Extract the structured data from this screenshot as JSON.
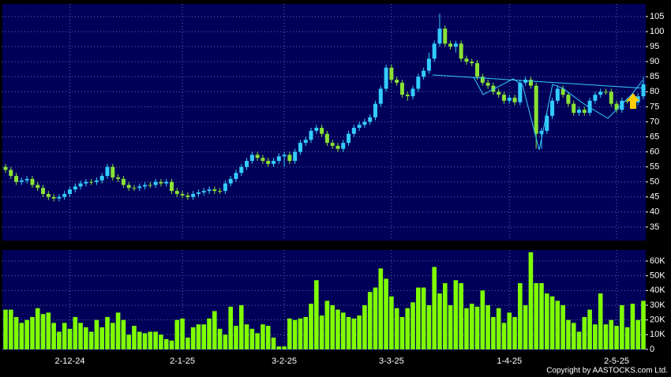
{
  "chart_data": [
    {
      "type": "candlestick",
      "categories": [
        null,
        null,
        null,
        null,
        null,
        null,
        null,
        null,
        null,
        null,
        null,
        null,
        "2-12-24",
        null,
        null,
        null,
        null,
        null,
        null,
        null,
        null,
        null,
        null,
        null,
        null,
        null,
        null,
        null,
        null,
        null,
        null,
        null,
        null,
        "2-1-25",
        null,
        null,
        null,
        null,
        null,
        null,
        null,
        null,
        null,
        null,
        null,
        null,
        null,
        null,
        null,
        null,
        null,
        null,
        "3-2-25",
        null,
        null,
        null,
        null,
        null,
        null,
        null,
        null,
        null,
        null,
        null,
        null,
        null,
        null,
        null,
        null,
        null,
        null,
        null,
        "3-3-25",
        null,
        null,
        null,
        null,
        null,
        null,
        null,
        null,
        null,
        null,
        null,
        null,
        null,
        null,
        null,
        null,
        null,
        null,
        null,
        null,
        null,
        "1-4-25",
        null,
        null,
        null,
        null,
        null,
        null,
        null,
        null,
        null,
        null,
        null,
        null,
        null,
        null,
        null,
        null,
        null,
        null,
        null,
        "2-5-25",
        null,
        null,
        null,
        null,
        null
      ],
      "open": [
        55,
        54,
        52,
        50,
        50.5,
        51,
        49,
        48,
        46,
        45,
        44.5,
        45,
        46,
        47.5,
        48.5,
        49.5,
        50,
        50,
        50.5,
        52,
        55,
        51.5,
        51,
        49,
        48,
        48,
        48.5,
        49,
        49,
        50,
        49.5,
        50,
        47,
        46,
        45.5,
        45,
        46,
        46.5,
        47,
        47.5,
        47,
        47,
        49.5,
        51,
        53,
        55,
        57,
        59,
        58,
        57,
        56,
        57,
        58.5,
        59,
        57,
        60,
        63,
        64,
        67,
        68,
        66,
        63,
        62,
        61,
        63,
        66,
        68,
        69,
        70,
        71.5,
        76,
        81,
        88,
        84,
        83,
        79,
        78.5,
        81,
        85,
        87,
        91,
        96,
        101,
        96,
        95,
        96,
        91,
        90,
        89.5,
        85,
        83,
        82,
        80,
        79,
        77,
        78,
        76.5,
        83,
        84,
        82,
        66,
        67,
        72,
        77,
        81,
        79,
        76,
        73,
        74,
        73,
        77,
        79,
        80,
        80,
        76,
        74,
        77,
        77,
        76.5,
        78.5
      ],
      "high": [
        56,
        55,
        53,
        51.5,
        52,
        52,
        50,
        49,
        47,
        46,
        46,
        47,
        48.5,
        49.5,
        50.5,
        51,
        51,
        51.5,
        53,
        56,
        56,
        52.5,
        52,
        50,
        49,
        49.5,
        50,
        50,
        51,
        51,
        51,
        51,
        48,
        47,
        46.5,
        47,
        47.5,
        48,
        48.5,
        48.5,
        48,
        50.5,
        52,
        54,
        56,
        58,
        60,
        60,
        59,
        58,
        58,
        59.5,
        60,
        60,
        61,
        64,
        65,
        68,
        69,
        69,
        67,
        64,
        63,
        64,
        67,
        69,
        70,
        71,
        72.5,
        77,
        82,
        89,
        89,
        85,
        84,
        80,
        82,
        86,
        88,
        93,
        97,
        106,
        102,
        97,
        97,
        97,
        92,
        91,
        90.5,
        86,
        84,
        83,
        81,
        80,
        79,
        79,
        84,
        85,
        85,
        83,
        68,
        73,
        78,
        82,
        82,
        80,
        77,
        75,
        75,
        78,
        80,
        81,
        81,
        81,
        77,
        78,
        78,
        78,
        79.5,
        85
      ],
      "low": [
        53,
        51,
        49,
        49,
        49.5,
        48,
        47,
        45,
        44,
        43.5,
        43.5,
        44,
        45,
        46.5,
        47.5,
        48.5,
        49,
        49,
        49.5,
        51,
        50.5,
        50,
        48,
        47,
        47,
        47,
        47.5,
        48,
        48,
        48.5,
        48.5,
        46,
        45,
        44.5,
        44,
        44,
        45,
        45.5,
        46,
        46,
        46,
        46,
        48.5,
        50,
        52,
        54,
        56,
        57,
        56,
        55,
        55,
        56,
        55,
        56,
        56,
        59,
        62,
        63,
        66,
        65,
        62,
        61,
        60,
        60,
        62,
        65,
        67,
        68,
        69,
        70.5,
        75,
        80,
        83,
        82,
        78,
        77,
        77.5,
        80,
        84,
        86,
        90,
        95,
        95,
        94,
        93,
        90,
        89,
        88.5,
        84,
        82,
        81,
        79,
        78,
        76,
        76,
        75.5,
        75.5,
        82,
        81,
        61,
        61,
        66,
        71,
        76,
        78,
        75,
        72,
        72,
        72,
        72,
        76,
        78,
        79,
        75,
        73,
        73,
        76,
        75.5,
        75.5,
        77.5
      ],
      "close": [
        54,
        52,
        50,
        50.5,
        51,
        49,
        48,
        46,
        45,
        44.5,
        45,
        46,
        47.5,
        48.5,
        49.5,
        50,
        50,
        50.5,
        52,
        55,
        51.5,
        51,
        49,
        48,
        48,
        48.5,
        49,
        49,
        50,
        49.5,
        50,
        47,
        46,
        45.5,
        45,
        46,
        46.5,
        47,
        47.5,
        47,
        47,
        49.5,
        51,
        53,
        55,
        57,
        59,
        58,
        57,
        56,
        57,
        58.5,
        59,
        57,
        60,
        63,
        64,
        67,
        68,
        66,
        63,
        62,
        61,
        63,
        66,
        68,
        69,
        70,
        71.5,
        76,
        81,
        88,
        84,
        83,
        79,
        78.5,
        81,
        85,
        87,
        91,
        96,
        101,
        96,
        95,
        96,
        91,
        90,
        89.5,
        85,
        83,
        82,
        80,
        79,
        77,
        78,
        76.5,
        83,
        84,
        82,
        66,
        67,
        72,
        77,
        81,
        79,
        76,
        73,
        74,
        73,
        77,
        79,
        80,
        80,
        76,
        74,
        77,
        77,
        76.5,
        78.5,
        82.5
      ],
      "up_color": "#33ccff",
      "down_color": "#8ae234",
      "ylim": [
        30.5,
        109.2
      ],
      "yticks": [
        35,
        40,
        45,
        50,
        55,
        60,
        65,
        70,
        75,
        80,
        85,
        90,
        95,
        100,
        105
      ],
      "grid": true
    },
    {
      "type": "bar",
      "color": "#7fff00",
      "values": [
        27000,
        27000,
        22000,
        18000,
        20000,
        22000,
        28000,
        24000,
        25000,
        18000,
        12000,
        18000,
        14000,
        22000,
        18000,
        15000,
        12000,
        20000,
        15000,
        22000,
        18000,
        25000,
        20000,
        10000,
        16000,
        12000,
        11000,
        12000,
        12000,
        10000,
        7000,
        6000,
        20000,
        21000,
        8000,
        15000,
        17000,
        17000,
        21000,
        26000,
        14000,
        10000,
        29000,
        16000,
        30000,
        17000,
        14000,
        11000,
        17000,
        16000,
        8000,
        2000,
        2000,
        21000,
        20000,
        21000,
        22000,
        31000,
        47000,
        23000,
        33000,
        30000,
        27000,
        25000,
        22000,
        21000,
        23000,
        30000,
        39000,
        42000,
        55000,
        48000,
        36000,
        28000,
        22000,
        28000,
        32000,
        42000,
        42000,
        30000,
        56000,
        38000,
        45000,
        30000,
        47000,
        45000,
        28000,
        31000,
        29000,
        40000,
        30000,
        22000,
        28000,
        18000,
        25000,
        22000,
        45000,
        30000,
        66000,
        45000,
        45000,
        38000,
        36000,
        33000,
        30000,
        20000,
        18000,
        12000,
        22000,
        27000,
        17000,
        38000,
        17000,
        20000,
        16000,
        30000,
        15000,
        31000,
        20000,
        33000
      ],
      "ylim": [
        0,
        67500
      ],
      "yticks": [
        0,
        {
          "value": 10000,
          "label": "10K"
        },
        {
          "value": 20000,
          "label": "20K"
        },
        {
          "value": 30000,
          "label": "30K"
        },
        {
          "value": 40000,
          "label": "40K"
        },
        {
          "value": 50000,
          "label": "50K"
        },
        {
          "value": 60000,
          "label": "60K"
        }
      ],
      "grid": true
    }
  ],
  "footer": "Copyright by AASTOCKS.com Ltd."
}
